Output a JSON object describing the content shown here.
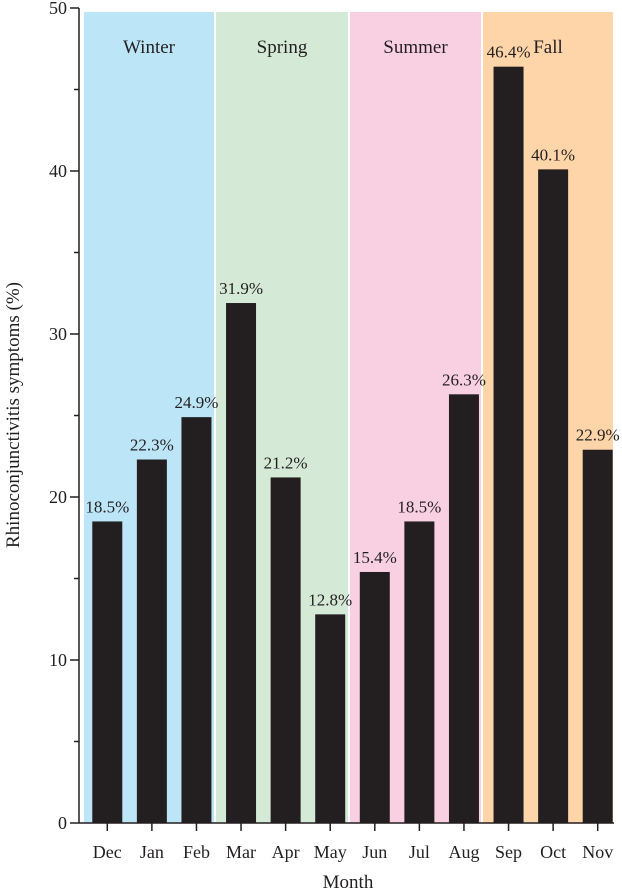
{
  "chart_data": {
    "type": "bar",
    "xlabel": "Month",
    "ylabel": "Rhinoconjunctivitis symptoms (%)",
    "ylim": [
      0,
      50
    ],
    "yticks": [
      0,
      10,
      20,
      30,
      40,
      50
    ],
    "grid": false,
    "categories": [
      "Dec",
      "Jan",
      "Feb",
      "Mar",
      "Apr",
      "May",
      "Jun",
      "Jul",
      "Aug",
      "Sep",
      "Oct",
      "Nov"
    ],
    "values": [
      18.5,
      22.3,
      24.9,
      31.9,
      21.2,
      12.8,
      15.4,
      18.5,
      26.3,
      46.4,
      40.1,
      22.9
    ],
    "value_labels": [
      "18.5%",
      "22.3%",
      "24.9%",
      "31.9%",
      "21.2%",
      "12.8%",
      "15.4%",
      "18.5%",
      "26.3%",
      "46.4%",
      "40.1%",
      "22.9%"
    ],
    "bar_color": "#231f20",
    "seasons": [
      {
        "name": "Winter",
        "months": [
          "Dec",
          "Jan",
          "Feb"
        ],
        "color": "#bde5f8"
      },
      {
        "name": "Spring",
        "months": [
          "Mar",
          "Apr",
          "May"
        ],
        "color": "#d5ead6"
      },
      {
        "name": "Summer",
        "months": [
          "Jun",
          "Jul",
          "Aug"
        ],
        "color": "#f9d0e2"
      },
      {
        "name": "Fall",
        "months": [
          "Sep",
          "Oct",
          "Nov"
        ],
        "color": "#fdd5a9"
      }
    ]
  }
}
